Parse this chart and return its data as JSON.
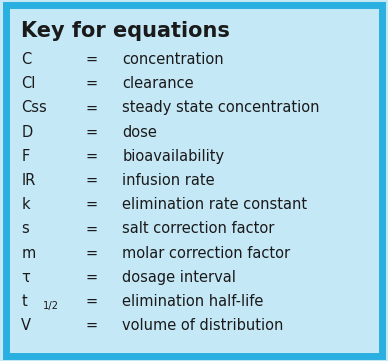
{
  "title": "Key for equations",
  "title_fontsize": 15,
  "title_fontweight": "bold",
  "title_color": "#1a1a1a",
  "row_fontsize": 10.5,
  "row_fontweight": "normal",
  "row_color": "#1a1a1a",
  "background_color": "#c5e8f7",
  "border_color": "#2ab0e0",
  "border_linewidth": 5,
  "rows": [
    {
      "symbol": "C",
      "eq": "=",
      "definition": "concentration"
    },
    {
      "symbol": "Cl",
      "eq": "=",
      "definition": "clearance"
    },
    {
      "symbol": "Css",
      "eq": "=",
      "definition": "steady state concentration"
    },
    {
      "symbol": "D",
      "eq": "=",
      "definition": "dose"
    },
    {
      "symbol": "F",
      "eq": "=",
      "definition": "bioavailability"
    },
    {
      "symbol": "IR",
      "eq": "=",
      "definition": "infusion rate"
    },
    {
      "symbol": "k",
      "eq": "=",
      "definition": "elimination rate constant"
    },
    {
      "symbol": "s",
      "eq": "=",
      "definition": "salt correction factor"
    },
    {
      "symbol": "m",
      "eq": "=",
      "definition": "molar correction factor"
    },
    {
      "symbol": "τ",
      "eq": "=",
      "definition": "dosage interval"
    },
    {
      "symbol": "t",
      "eq": "=",
      "definition": "elimination half-life",
      "subscript": "1/2",
      "is_subscript": true
    },
    {
      "symbol": "V",
      "eq": "=",
      "definition": "volume of distribution"
    }
  ],
  "figwidth": 3.88,
  "figheight": 3.61,
  "dpi": 100
}
